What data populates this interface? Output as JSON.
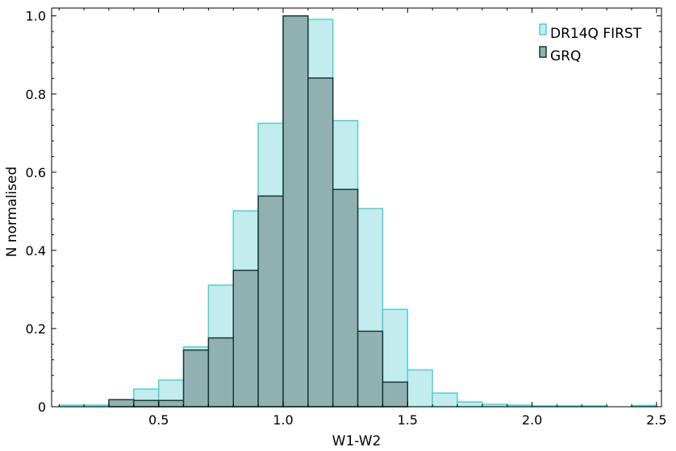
{
  "chart_data": {
    "type": "bar",
    "subtype": "histogram",
    "xlabel": "W1-W2",
    "ylabel": "N normalised",
    "xlim": [
      0.07,
      2.52
    ],
    "ylim": [
      0,
      1.02
    ],
    "xticks": [
      "0.5",
      "1.0",
      "1.5",
      "2.0",
      "2.5"
    ],
    "yticks": [
      "0",
      "0.2",
      "0.4",
      "0.6",
      "0.8",
      "1.0"
    ],
    "bin_width": 0.1,
    "grid": false,
    "legend_position": "top-right",
    "series": [
      {
        "name": "DR14Q FIRST",
        "fill": "#c2ecee",
        "stroke": "#4fcfd3",
        "bins": [
          {
            "x0": 0.1,
            "value": 0.004
          },
          {
            "x0": 0.2,
            "value": 0.004
          },
          {
            "x0": 0.3,
            "value": 0.018
          },
          {
            "x0": 0.4,
            "value": 0.045
          },
          {
            "x0": 0.5,
            "value": 0.068
          },
          {
            "x0": 0.6,
            "value": 0.153
          },
          {
            "x0": 0.7,
            "value": 0.311
          },
          {
            "x0": 0.8,
            "value": 0.501
          },
          {
            "x0": 0.9,
            "value": 0.725
          },
          {
            "x0": 1.0,
            "value": 0.99
          },
          {
            "x0": 1.1,
            "value": 0.991
          },
          {
            "x0": 1.2,
            "value": 0.732
          },
          {
            "x0": 1.3,
            "value": 0.507
          },
          {
            "x0": 1.4,
            "value": 0.249
          },
          {
            "x0": 1.5,
            "value": 0.094
          },
          {
            "x0": 1.6,
            "value": 0.035
          },
          {
            "x0": 1.7,
            "value": 0.012
          },
          {
            "x0": 1.8,
            "value": 0.006
          },
          {
            "x0": 1.9,
            "value": 0.004
          },
          {
            "x0": 2.0,
            "value": 0.002
          },
          {
            "x0": 2.1,
            "value": 0.002
          },
          {
            "x0": 2.2,
            "value": 0.002
          },
          {
            "x0": 2.4,
            "value": 0.003
          }
        ]
      },
      {
        "name": "GRQ",
        "fill": "#90b1b0",
        "stroke": "#173838",
        "bins": [
          {
            "x0": 0.3,
            "value": 0.018
          },
          {
            "x0": 0.4,
            "value": 0.016
          },
          {
            "x0": 0.5,
            "value": 0.016
          },
          {
            "x0": 0.6,
            "value": 0.145
          },
          {
            "x0": 0.7,
            "value": 0.176
          },
          {
            "x0": 0.8,
            "value": 0.349
          },
          {
            "x0": 0.9,
            "value": 0.539
          },
          {
            "x0": 1.0,
            "value": 1.0
          },
          {
            "x0": 1.1,
            "value": 0.841
          },
          {
            "x0": 1.2,
            "value": 0.556
          },
          {
            "x0": 1.3,
            "value": 0.193
          },
          {
            "x0": 1.4,
            "value": 0.063
          }
        ]
      }
    ]
  }
}
